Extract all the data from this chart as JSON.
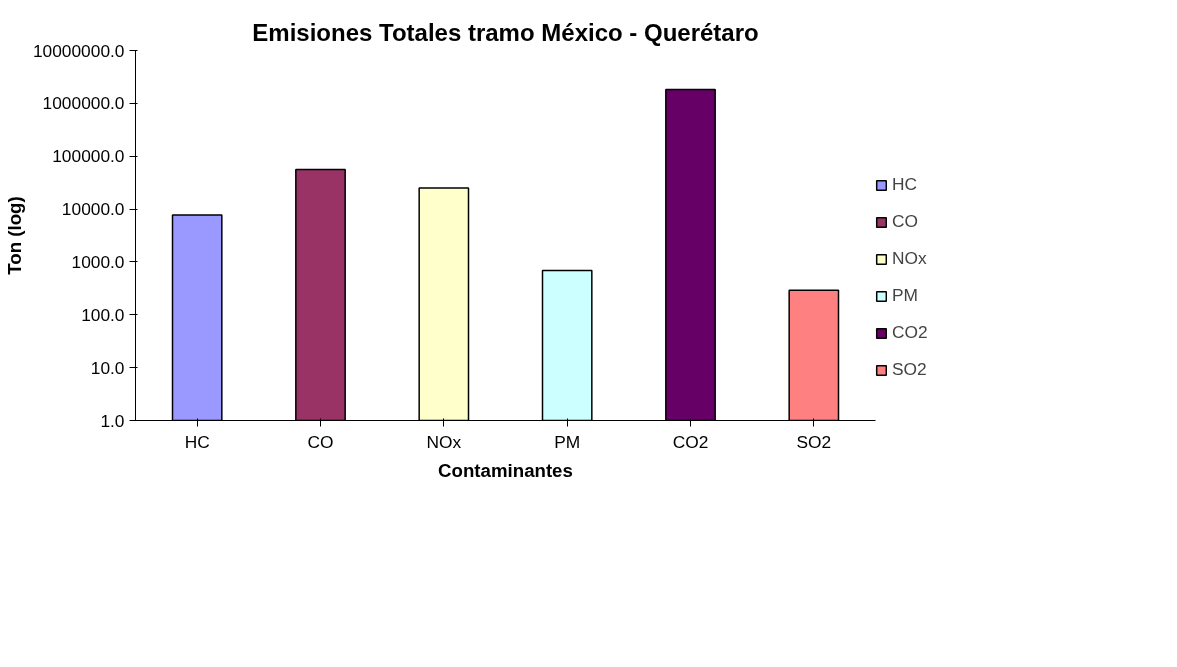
{
  "chart_data": {
    "type": "bar",
    "title": "Emisiones Totales tramo México - Querétaro",
    "xlabel": "Contaminantes",
    "ylabel": "Ton (log)",
    "categories": [
      "HC",
      "CO",
      "NOx",
      "PM",
      "CO2",
      "SO2"
    ],
    "series": [
      {
        "name": "HC",
        "color": "#9999ff",
        "values": [
          7700,
          null,
          null,
          null,
          null,
          null
        ]
      },
      {
        "name": "CO",
        "color": "#993366",
        "values": [
          null,
          56000,
          null,
          null,
          null,
          null
        ]
      },
      {
        "name": "NOx",
        "color": "#ffffcc",
        "values": [
          null,
          null,
          25000,
          null,
          null,
          null
        ]
      },
      {
        "name": "PM",
        "color": "#ccffff",
        "values": [
          null,
          null,
          null,
          690,
          null,
          null
        ]
      },
      {
        "name": "CO2",
        "color": "#660066",
        "values": [
          null,
          null,
          null,
          null,
          1820000,
          null
        ]
      },
      {
        "name": "SO2",
        "color": "#ff8080",
        "values": [
          null,
          null,
          null,
          null,
          null,
          290
        ]
      }
    ],
    "log": true,
    "ylim": [
      1,
      10000000
    ],
    "yticks": [
      {
        "value": 1,
        "label": "1.0"
      },
      {
        "value": 10,
        "label": "10.0"
      },
      {
        "value": 100,
        "label": "100.0"
      },
      {
        "value": 1000,
        "label": "1000.0"
      },
      {
        "value": 10000,
        "label": "10000.0"
      },
      {
        "value": 100000,
        "label": "100000.0"
      },
      {
        "value": 1000000,
        "label": "1000000.0"
      },
      {
        "value": 10000000,
        "label": "10000000.0"
      }
    ],
    "grid": false,
    "legend": "right"
  }
}
